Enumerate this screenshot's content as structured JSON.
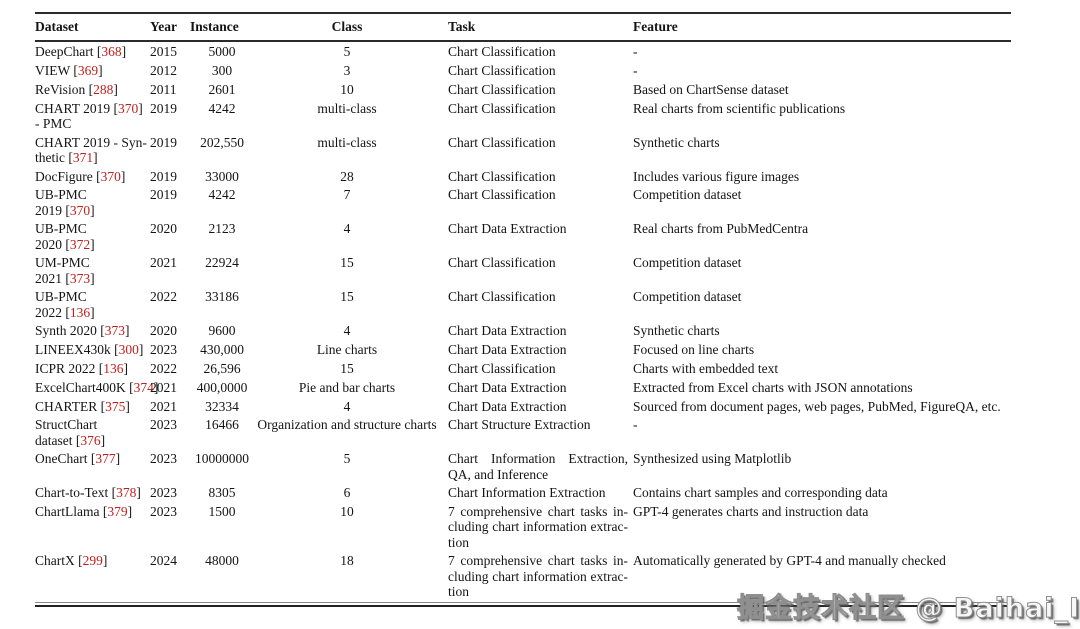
{
  "watermark": "掘金技术社区 @ Baihai_IDP",
  "colors": {
    "reference_red": "#c0201c",
    "rule_dark": "#2b2b2b",
    "text": "#141414"
  },
  "table": {
    "headers": [
      "Dataset",
      "Year",
      "Instance",
      "Class",
      "Task",
      "Feature"
    ],
    "rows": [
      {
        "dataset_lines": [
          [
            {
              "t": "DeepChart ["
            },
            {
              "r": "368"
            },
            {
              "t": "]"
            }
          ]
        ],
        "year": "2015",
        "instance": "5000",
        "class_label": "5",
        "task_lines": [
          "Chart Classification"
        ],
        "feature": "-"
      },
      {
        "dataset_lines": [
          [
            {
              "t": "VIEW ["
            },
            {
              "r": "369"
            },
            {
              "t": "]"
            }
          ]
        ],
        "year": "2012",
        "instance": "300",
        "class_label": "3",
        "task_lines": [
          "Chart Classification"
        ],
        "feature": "-"
      },
      {
        "dataset_lines": [
          [
            {
              "t": "ReVision ["
            },
            {
              "r": "288"
            },
            {
              "t": "]"
            }
          ]
        ],
        "year": "2011",
        "instance": "2601",
        "class_label": "10",
        "task_lines": [
          "Chart Classification"
        ],
        "feature": "Based on ChartSense dataset"
      },
      {
        "dataset_lines": [
          [
            {
              "t": "CHART 2019 ["
            },
            {
              "r": "370"
            },
            {
              "t": "]"
            }
          ],
          [
            {
              "t": "- PMC"
            }
          ]
        ],
        "year": "2019",
        "instance": "4242",
        "class_label": "multi-class",
        "task_lines": [
          "Chart Classification"
        ],
        "feature": "Real charts from scientific publications"
      },
      {
        "dataset_lines": [
          [
            {
              "t": "CHART 2019 - Syn-"
            }
          ],
          [
            {
              "t": "thetic ["
            },
            {
              "r": "371"
            },
            {
              "t": "]"
            }
          ]
        ],
        "year": "2019",
        "instance": "202,550",
        "class_label": "multi-class",
        "task_lines": [
          "Chart Classification"
        ],
        "feature": "Synthetic charts"
      },
      {
        "dataset_lines": [
          [
            {
              "t": "DocFigure ["
            },
            {
              "r": "370"
            },
            {
              "t": "]"
            }
          ]
        ],
        "year": "2019",
        "instance": "33000",
        "class_label": "28",
        "task_lines": [
          "Chart Classification"
        ],
        "feature": "Includes various figure images"
      },
      {
        "dataset_lines": [
          [
            {
              "t": "UB-PMC"
            }
          ],
          [
            {
              "t": "2019 ["
            },
            {
              "r": "370"
            },
            {
              "t": "]"
            }
          ]
        ],
        "year": "2019",
        "instance": "4242",
        "class_label": "7",
        "task_lines": [
          "Chart Classification"
        ],
        "feature": "Competition dataset"
      },
      {
        "dataset_lines": [
          [
            {
              "t": "UB-PMC"
            }
          ],
          [
            {
              "t": "2020 ["
            },
            {
              "r": "372"
            },
            {
              "t": "]"
            }
          ]
        ],
        "year": "2020",
        "instance": "2123",
        "class_label": "4",
        "task_lines": [
          "Chart Data Extraction"
        ],
        "feature": "Real charts from PubMedCentra"
      },
      {
        "dataset_lines": [
          [
            {
              "t": "UM-PMC"
            }
          ],
          [
            {
              "t": "2021 ["
            },
            {
              "r": "373"
            },
            {
              "t": "]"
            }
          ]
        ],
        "year": "2021",
        "instance": "22924",
        "class_label": "15",
        "task_lines": [
          "Chart Classification"
        ],
        "feature": "Competition dataset"
      },
      {
        "dataset_lines": [
          [
            {
              "t": "UB-PMC"
            }
          ],
          [
            {
              "t": "2022 ["
            },
            {
              "r": "136"
            },
            {
              "t": "]"
            }
          ]
        ],
        "year": "2022",
        "instance": "33186",
        "class_label": "15",
        "task_lines": [
          "Chart Classification"
        ],
        "feature": "Competition dataset"
      },
      {
        "dataset_lines": [
          [
            {
              "t": "Synth 2020 ["
            },
            {
              "r": "373"
            },
            {
              "t": "]"
            }
          ]
        ],
        "year": "2020",
        "instance": "9600",
        "class_label": "4",
        "task_lines": [
          "Chart Data Extraction"
        ],
        "feature": "Synthetic charts"
      },
      {
        "dataset_lines": [
          [
            {
              "t": "LINEEX430k ["
            },
            {
              "r": "300"
            },
            {
              "t": "]"
            }
          ]
        ],
        "year": "2023",
        "instance": "430,000",
        "class_label": "Line charts",
        "task_lines": [
          "Chart Data Extraction"
        ],
        "feature": "Focused on line charts"
      },
      {
        "dataset_lines": [
          [
            {
              "t": "ICPR 2022 ["
            },
            {
              "r": "136"
            },
            {
              "t": "]"
            }
          ]
        ],
        "year": "2022",
        "instance": "26,596",
        "class_label": "15",
        "task_lines": [
          "Chart Classification"
        ],
        "feature": "Charts with embedded text"
      },
      {
        "dataset_lines": [
          [
            {
              "t": "ExcelChart400K ["
            },
            {
              "r": "374"
            },
            {
              "t": "]"
            }
          ]
        ],
        "year": "2021",
        "instance": "400,0000",
        "class_label": "Pie and bar charts",
        "task_lines": [
          "Chart Data Extraction"
        ],
        "feature": "Extracted from Excel charts with JSON annotations"
      },
      {
        "dataset_lines": [
          [
            {
              "t": "CHARTER ["
            },
            {
              "r": "375"
            },
            {
              "t": "]"
            }
          ]
        ],
        "year": "2021",
        "instance": "32334",
        "class_label": "4",
        "task_lines": [
          "Chart Data Extraction"
        ],
        "feature": "Sourced from document pages, web pages, PubMed, FigureQA, etc."
      },
      {
        "dataset_lines": [
          [
            {
              "t": "StructChart"
            }
          ],
          [
            {
              "t": "dataset ["
            },
            {
              "r": "376"
            },
            {
              "t": "]"
            }
          ]
        ],
        "year": "2023",
        "instance": "16466",
        "class_label": "Organization and structure charts",
        "task_lines": [
          "Chart Structure Extraction"
        ],
        "feature": "-"
      },
      {
        "dataset_lines": [
          [
            {
              "t": "OneChart ["
            },
            {
              "r": "377"
            },
            {
              "t": "]"
            }
          ]
        ],
        "year": "2023",
        "instance": "10000000",
        "class_label": "5",
        "task_lines": [
          "Chart Information Extraction,",
          "QA, and Inference"
        ],
        "feature": "Synthesized using Matplotlib"
      },
      {
        "dataset_lines": [
          [
            {
              "t": "Chart-to-Text ["
            },
            {
              "r": "378"
            },
            {
              "t": "]"
            }
          ]
        ],
        "year": "2023",
        "instance": "8305",
        "class_label": "6",
        "task_lines": [
          "Chart Information Extraction"
        ],
        "feature": "Contains chart samples and corresponding data"
      },
      {
        "dataset_lines": [
          [
            {
              "t": "ChartLlama ["
            },
            {
              "r": "379"
            },
            {
              "t": "]"
            }
          ]
        ],
        "year": "2023",
        "instance": "1500",
        "class_label": "10",
        "task_lines": [
          "7 comprehensive chart tasks in-",
          "cluding chart information extrac-",
          "tion"
        ],
        "feature": "GPT-4 generates charts and instruction data"
      },
      {
        "dataset_lines": [
          [
            {
              "t": "ChartX ["
            },
            {
              "r": "299"
            },
            {
              "t": "]"
            }
          ]
        ],
        "year": "2024",
        "instance": "48000",
        "class_label": "18",
        "task_lines": [
          "7 comprehensive chart tasks in-",
          "cluding chart information extrac-",
          "tion"
        ],
        "feature": "Automatically generated by GPT-4 and manually checked"
      }
    ]
  }
}
